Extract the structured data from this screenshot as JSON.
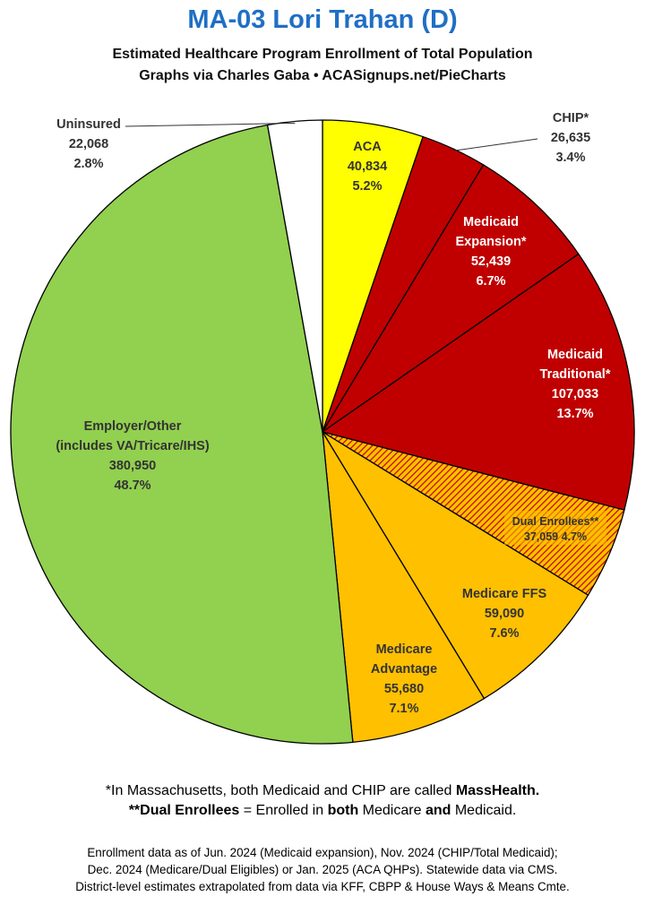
{
  "header": {
    "title": "MA-03 Lori Trahan (D)",
    "subtitle1": "Estimated Healthcare Program Enrollment of Total Population",
    "subtitle2": "Graphs via Charles Gaba  •  ACASignups.net/PieCharts"
  },
  "chart_data": {
    "type": "pie",
    "title": "MA-03 Lori Trahan (D)",
    "start_angle_deg": 0,
    "direction": "clockwise",
    "slices": [
      {
        "key": "aca",
        "label": [
          "ACA"
        ],
        "value": 40834,
        "value_text": "40,834",
        "pct": "5.2%",
        "color": "#ffff00",
        "text_color": "#333333"
      },
      {
        "key": "chip",
        "label": [
          "CHIP*"
        ],
        "value": 26635,
        "value_text": "26,635",
        "pct": "3.4%",
        "color": "#c00000",
        "text_color": "#333333",
        "outside": true
      },
      {
        "key": "medicaid-expansion",
        "label": [
          "Medicaid",
          "Expansion*"
        ],
        "value": 52439,
        "value_text": "52,439",
        "pct": "6.7%",
        "color": "#c00000",
        "text_color": "#ffffff"
      },
      {
        "key": "medicaid-traditional",
        "label": [
          "Medicaid",
          "Traditional*"
        ],
        "value": 107033,
        "value_text": "107,033",
        "pct": "13.7%",
        "color": "#c00000",
        "text_color": "#ffffff"
      },
      {
        "key": "dual-enrollees",
        "label": [
          "Dual Enrollees**"
        ],
        "value": 37059,
        "value_text": "37,059",
        "pct": "4.7%",
        "color": "#e8702a",
        "text_color": "#333333",
        "hatched": true
      },
      {
        "key": "medicare-ffs",
        "label": [
          "Medicare FFS"
        ],
        "value": 59090,
        "value_text": "59,090",
        "pct": "7.6%",
        "color": "#ffc000",
        "text_color": "#333333"
      },
      {
        "key": "medicare-advantage",
        "label": [
          "Medicare",
          "Advantage"
        ],
        "value": 55680,
        "value_text": "55,680",
        "pct": "7.1%",
        "color": "#ffc000",
        "text_color": "#333333"
      },
      {
        "key": "employer-other",
        "label": [
          "Employer/Other",
          "(includes VA/Tricare/IHS)"
        ],
        "value": 380950,
        "value_text": "380,950",
        "pct": "48.7%",
        "color": "#92d050",
        "text_color": "#333333"
      },
      {
        "key": "uninsured",
        "label": [
          "Uninsured"
        ],
        "value": 22068,
        "value_text": "22,068",
        "pct": "2.8%",
        "color": "#ffffff",
        "text_color": "#333333",
        "outside": true
      }
    ]
  },
  "footnotes": {
    "note1_prefix": "*In Massachusetts, both Medicaid and CHIP are called ",
    "note1_bold": "MassHealth.",
    "note2_bold1": "**Dual Enrollees",
    "note2_mid": " = Enrolled in ",
    "note2_bold2": "both",
    "note2_mid2": " Medicare ",
    "note2_bold3": "and",
    "note2_end": " Medicaid.",
    "source1": "Enrollment data as of Jun. 2024 (Medicaid expansion), Nov. 2024 (CHIP/Total Medicaid);",
    "source2": "Dec. 2024 (Medicare/Dual Eligibles) or Jan. 2025 (ACA QHPs). Statewide data via CMS.",
    "source3": "District-level estimates extrapolated from data via KFF, CBPP & House Ways & Means Cmte."
  }
}
